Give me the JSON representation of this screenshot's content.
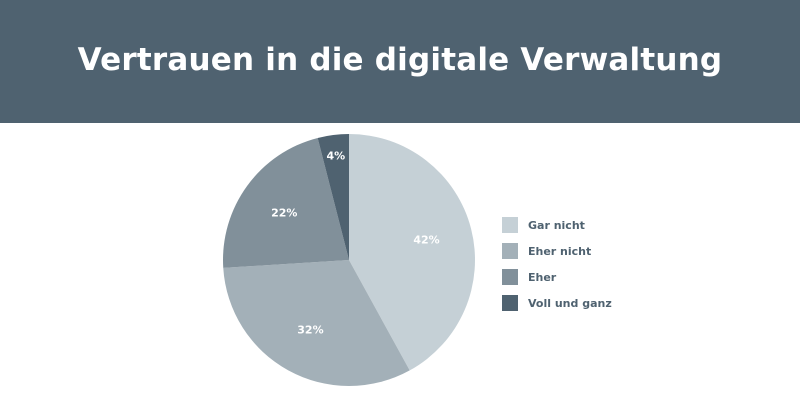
{
  "header": {
    "title": "Vertrauen in die digitale Verwaltung",
    "background": "#4f6270",
    "title_color": "#ffffff"
  },
  "chart_data": {
    "type": "pie",
    "title": "Vertrauen in die digitale Verwaltung",
    "unit": "%",
    "legend_position": "right",
    "start": "top",
    "direction": "clockwise",
    "label_color": "#ffffff",
    "slices": [
      {
        "label": "Gar nicht",
        "value": 42,
        "value_label": "42%",
        "color": "#c5d0d6"
      },
      {
        "label": "Eher nicht",
        "value": 32,
        "value_label": "32%",
        "color": "#a3b0b8"
      },
      {
        "label": "Eher",
        "value": 22,
        "value_label": "22%",
        "color": "#81909a"
      },
      {
        "label": "Voll und ganz",
        "value": 4,
        "value_label": "4%",
        "color": "#4f6270"
      }
    ]
  }
}
